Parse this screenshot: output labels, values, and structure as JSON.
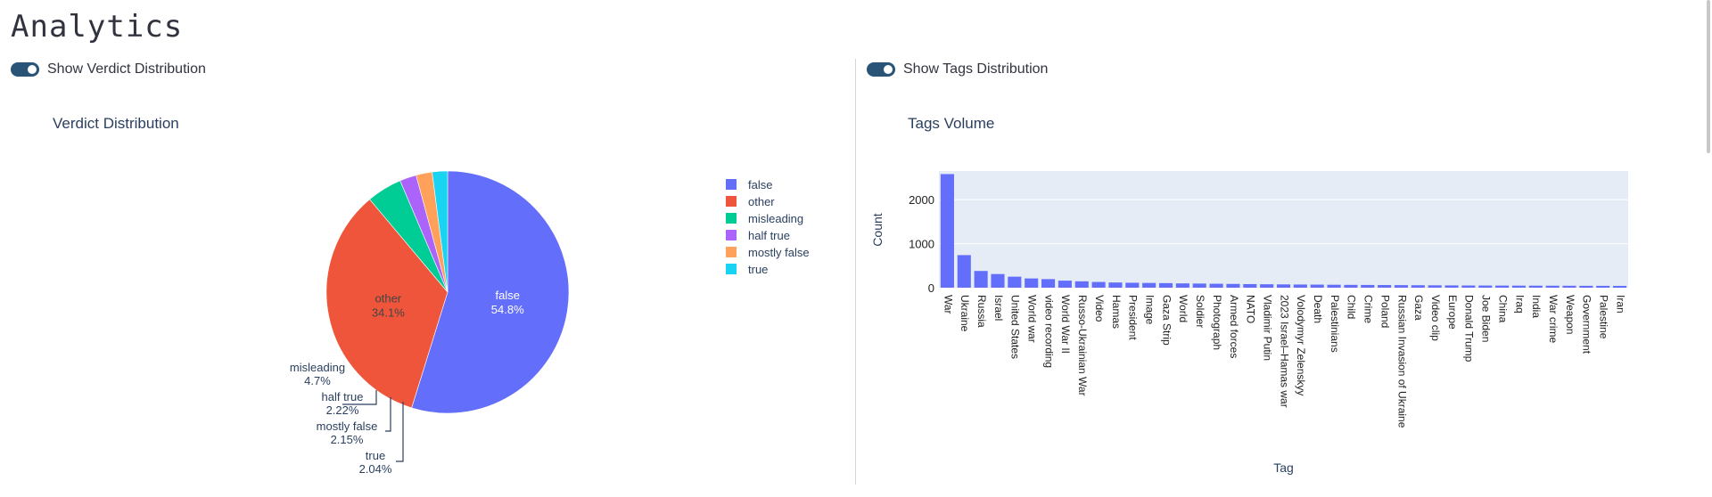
{
  "page": {
    "title": "Analytics"
  },
  "toggles": {
    "verdict": {
      "label": "Show Verdict Distribution",
      "on": true
    },
    "tags": {
      "label": "Show Tags Distribution",
      "on": true
    }
  },
  "colors": {
    "false": "#636efa",
    "other": "#ef553b",
    "misleading": "#00cc96",
    "half true": "#ab63fa",
    "mostly false": "#ffa15a",
    "true": "#19d3f3",
    "bar": "#636efa",
    "plot_bg": "#e5ecf6",
    "text": "#2a3f5f"
  },
  "chart_data": [
    {
      "type": "pie",
      "title": "Verdict Distribution",
      "legend_position": "right",
      "labels": [
        "false",
        "other",
        "misleading",
        "half true",
        "mostly false",
        "true"
      ],
      "values": [
        54.8,
        34.1,
        4.7,
        2.22,
        2.15,
        2.04
      ],
      "text": [
        "54.8%",
        "34.1%",
        "4.7%",
        "2.22%",
        "2.15%",
        "2.04%"
      ]
    },
    {
      "type": "bar",
      "title": "Tags Volume",
      "xlabel": "Tag",
      "ylabel": "Count",
      "ylim": [
        0,
        2650
      ],
      "yticks": [
        0,
        1000,
        2000
      ],
      "grid": true,
      "categories": [
        "War",
        "Ukraine",
        "Russia",
        "Israel",
        "United States",
        "World war",
        "video recording",
        "World War II",
        "Russo-Ukrainian War",
        "Video",
        "Hamas",
        "President",
        "Image",
        "Gaza Strip",
        "World",
        "Soldier",
        "Photograph",
        "Armed forces",
        "NATO",
        "Vladimir Putin",
        "2023 Israel–Hamas war",
        "Volodymyr Zelenskyy",
        "Death",
        "Palestinians",
        "Child",
        "Crime",
        "Poland",
        "Russian Invasion of Ukraine",
        "Gaza",
        "Video clip",
        "Europe",
        "Donald Trump",
        "Joe Biden",
        "China",
        "Iraq",
        "India",
        "War crime",
        "Weapon",
        "Government",
        "Palestine",
        "Iran"
      ],
      "values": [
        2580,
        740,
        380,
        310,
        250,
        210,
        195,
        160,
        145,
        130,
        118,
        112,
        108,
        104,
        98,
        94,
        90,
        86,
        82,
        78,
        75,
        72,
        70,
        67,
        64,
        62,
        60,
        58,
        56,
        54,
        52,
        50,
        49,
        48,
        47,
        46,
        45,
        44,
        43,
        42,
        41
      ]
    }
  ]
}
